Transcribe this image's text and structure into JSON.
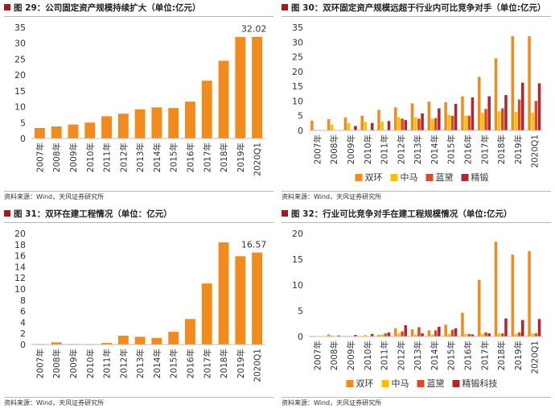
{
  "charts": [
    {
      "title": "图 29：公司固定资产规模持续扩大（单位:亿元）",
      "source": "资料来源：Wind，天风证券研究所",
      "chart_data": {
        "type": "bar",
        "categories": [
          "2007年",
          "2008年",
          "2009年",
          "2010年",
          "2011年",
          "2012年",
          "2013年",
          "2014年",
          "2015年",
          "2016年",
          "2017年",
          "2018年",
          "2019年",
          "2020Q1"
        ],
        "series": [
          {
            "values": [
              3.3,
              3.8,
              4.4,
              5.0,
              7.0,
              7.8,
              9.2,
              9.8,
              9.6,
              11.6,
              18.2,
              24.5,
              32.0,
              32.02
            ],
            "color": "#f28b1e"
          }
        ],
        "ylim": [
          0,
          35
        ],
        "yticks": [
          0,
          5,
          10,
          15,
          20,
          25,
          30,
          35
        ],
        "annotations": [
          {
            "category": "2020Q1",
            "text": "32.02"
          }
        ],
        "legend": "none"
      }
    },
    {
      "title": "图 30：双环固定资产规模远超于行业内可比竞争对手（单位:亿元）",
      "source": "资料来源：Wind，天风证券研究所",
      "chart_data": {
        "type": "bar",
        "categories": [
          "2007年",
          "2008年",
          "2009年",
          "2010年",
          "2011年",
          "2012年",
          "2013年",
          "2014年",
          "2015年",
          "2016年",
          "2017年",
          "2018年",
          "2019年",
          "2020Q1"
        ],
        "series": [
          {
            "name": "双环",
            "color": "#f28b1e",
            "values": [
              3.3,
              3.8,
              4.4,
              5.0,
              7.0,
              7.8,
              9.2,
              9.8,
              9.6,
              11.6,
              18.2,
              24.5,
              32.0,
              32.0
            ]
          },
          {
            "name": "中马",
            "color": "#ffc000",
            "values": [
              0.2,
              2.0,
              2.5,
              2.9,
              3.0,
              4.5,
              4.5,
              4.0,
              5.3,
              5.0,
              6.0,
              6.5,
              6.3,
              6.0
            ]
          },
          {
            "name": "蓝黛",
            "color": "#d84b2a",
            "values": [
              0.0,
              0.0,
              0.0,
              0.0,
              0.0,
              4.0,
              4.0,
              4.2,
              5.0,
              5.0,
              7.3,
              7.5,
              10.5,
              10.0
            ]
          },
          {
            "name": "精锻",
            "color": "#b0282e",
            "values": [
              0.0,
              0.0,
              1.5,
              2.5,
              3.2,
              3.5,
              5.8,
              7.5,
              9.0,
              11.2,
              11.6,
              12.0,
              16.2,
              16.0
            ]
          }
        ],
        "ylim": [
          0,
          35
        ],
        "yticks": [
          0,
          5,
          10,
          15,
          20,
          25,
          30,
          35
        ],
        "legend": "bottom"
      }
    },
    {
      "title": "图 31：双环在建工程情况（单位：亿元）",
      "source": "资料来源：Wind，天风证券研究所",
      "chart_data": {
        "type": "bar",
        "categories": [
          "2007年",
          "2008年",
          "2009年",
          "2010年",
          "2011年",
          "2012年",
          "2013年",
          "2014年",
          "2015年",
          "2016年",
          "2017年",
          "2018年",
          "2019年",
          "2020Q1"
        ],
        "series": [
          {
            "values": [
              0.1,
              0.4,
              0.1,
              0.1,
              0.3,
              1.6,
              1.4,
              1.2,
              2.3,
              4.6,
              11.0,
              18.4,
              15.9,
              16.57
            ],
            "color": "#f28b1e"
          }
        ],
        "ylim": [
          0,
          20
        ],
        "yticks": [
          0,
          2,
          4,
          6,
          8,
          10,
          12,
          14,
          16,
          18,
          20
        ],
        "annotations": [
          {
            "category": "2020Q1",
            "text": "16.57"
          }
        ],
        "legend": "none"
      }
    },
    {
      "title": "图 32：行业可比竞争对手在建工程规模情况（单位:亿元）",
      "source": "资料来源：Wind，天风证券研究所",
      "chart_data": {
        "type": "bar",
        "categories": [
          "2007年",
          "2008年",
          "2009年",
          "2010年",
          "2011年",
          "2012年",
          "2013年",
          "2014年",
          "2015年",
          "2016年",
          "2017年",
          "2018年",
          "2019年",
          "2020Q1"
        ],
        "series": [
          {
            "name": "双环",
            "color": "#f28b1e",
            "values": [
              0.1,
              0.4,
              0.1,
              0.1,
              0.3,
              1.6,
              1.4,
              1.2,
              2.3,
              4.6,
              11.0,
              18.4,
              15.9,
              16.57
            ]
          },
          {
            "name": "中马",
            "color": "#ffc000",
            "values": [
              0.1,
              0.2,
              0.1,
              0.3,
              0.4,
              0.6,
              0.4,
              0.4,
              0.5,
              0.5,
              0.5,
              0.6,
              0.5,
              0.6
            ]
          },
          {
            "name": "蓝黛",
            "color": "#d84b2a",
            "values": [
              0.0,
              0.0,
              0.0,
              0.0,
              0.6,
              1.0,
              1.8,
              1.2,
              1.3,
              0.5,
              0.8,
              0.6,
              0.8,
              0.6
            ]
          },
          {
            "name": "精锻科技",
            "color": "#b0282e",
            "values": [
              0.0,
              0.2,
              0.3,
              0.5,
              0.8,
              2.2,
              0.6,
              1.9,
              1.6,
              0.4,
              0.6,
              3.5,
              3.2,
              3.4
            ]
          }
        ],
        "ylim": [
          0,
          20
        ],
        "yticks": [
          0,
          5,
          10,
          15,
          20
        ],
        "legend": "bottom"
      }
    }
  ]
}
